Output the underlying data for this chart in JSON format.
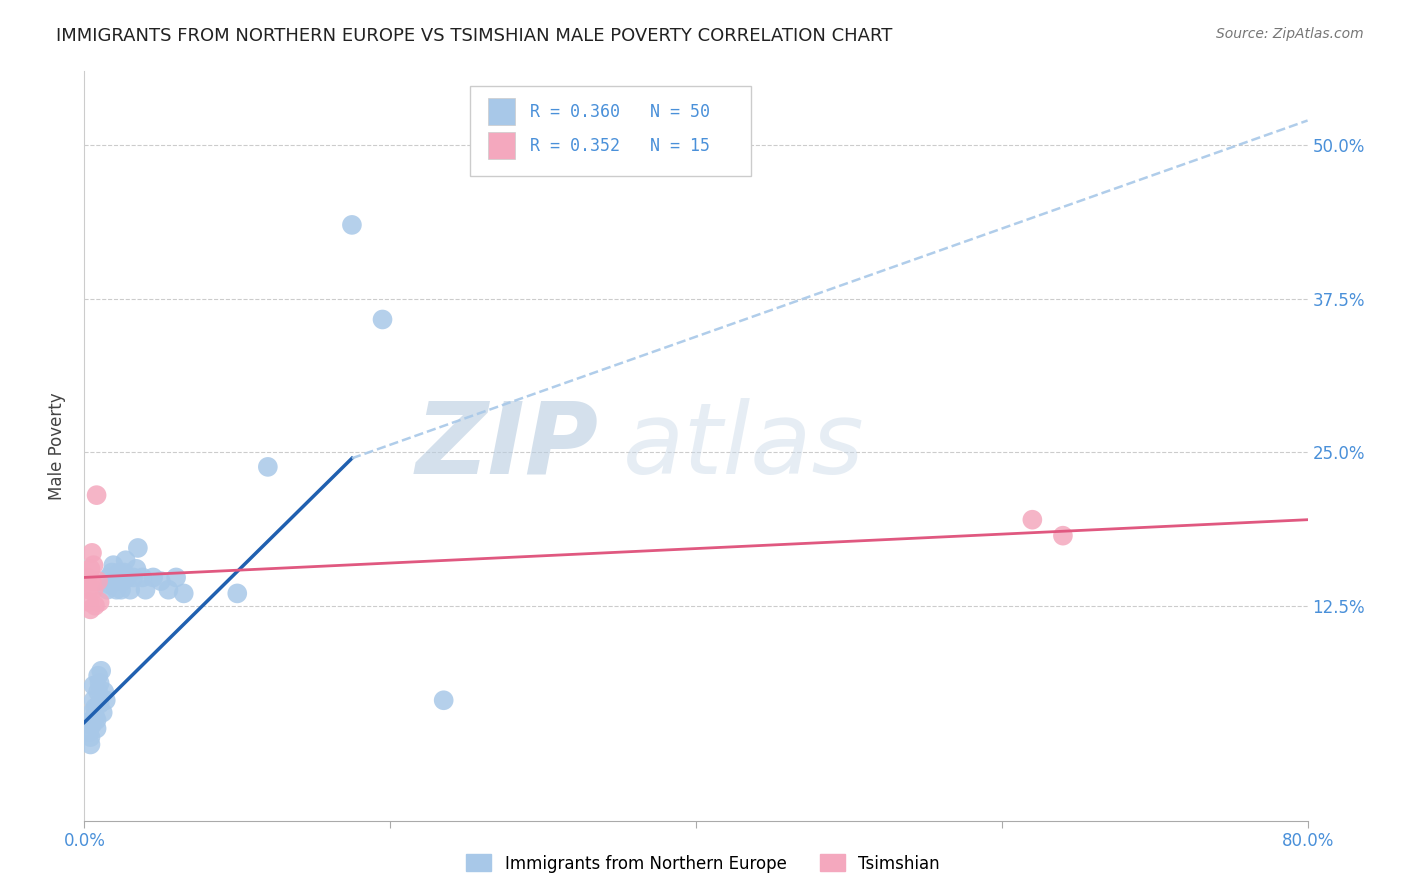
{
  "title": "IMMIGRANTS FROM NORTHERN EUROPE VS TSIMSHIAN MALE POVERTY CORRELATION CHART",
  "source": "Source: ZipAtlas.com",
  "ylabel": "Male Poverty",
  "ytick_labels": [
    "12.5%",
    "25.0%",
    "37.5%",
    "50.0%"
  ],
  "ytick_values": [
    0.125,
    0.25,
    0.375,
    0.5
  ],
  "xlim": [
    0.0,
    0.8
  ],
  "ylim": [
    -0.05,
    0.56
  ],
  "legend1_label": "Immigrants from Northern Europe",
  "legend2_label": "Tsimshian",
  "r1": 0.36,
  "n1": 50,
  "r2": 0.352,
  "n2": 15,
  "blue_color": "#a8c8e8",
  "pink_color": "#f4a8be",
  "blue_line_color": "#2060b0",
  "pink_line_color": "#e05880",
  "blue_dots": [
    [
      0.002,
      0.03
    ],
    [
      0.003,
      0.022
    ],
    [
      0.004,
      0.018
    ],
    [
      0.004,
      0.012
    ],
    [
      0.005,
      0.038
    ],
    [
      0.005,
      0.028
    ],
    [
      0.006,
      0.048
    ],
    [
      0.006,
      0.06
    ],
    [
      0.007,
      0.035
    ],
    [
      0.007,
      0.042
    ],
    [
      0.008,
      0.025
    ],
    [
      0.008,
      0.032
    ],
    [
      0.009,
      0.068
    ],
    [
      0.009,
      0.055
    ],
    [
      0.01,
      0.045
    ],
    [
      0.01,
      0.062
    ],
    [
      0.011,
      0.072
    ],
    [
      0.012,
      0.038
    ],
    [
      0.013,
      0.055
    ],
    [
      0.014,
      0.048
    ],
    [
      0.015,
      0.138
    ],
    [
      0.016,
      0.148
    ],
    [
      0.017,
      0.142
    ],
    [
      0.018,
      0.152
    ],
    [
      0.019,
      0.158
    ],
    [
      0.02,
      0.145
    ],
    [
      0.021,
      0.138
    ],
    [
      0.022,
      0.148
    ],
    [
      0.023,
      0.152
    ],
    [
      0.024,
      0.138
    ],
    [
      0.025,
      0.145
    ],
    [
      0.026,
      0.152
    ],
    [
      0.027,
      0.162
    ],
    [
      0.028,
      0.148
    ],
    [
      0.03,
      0.138
    ],
    [
      0.032,
      0.148
    ],
    [
      0.034,
      0.155
    ],
    [
      0.035,
      0.172
    ],
    [
      0.038,
      0.148
    ],
    [
      0.04,
      0.138
    ],
    [
      0.045,
      0.148
    ],
    [
      0.05,
      0.145
    ],
    [
      0.055,
      0.138
    ],
    [
      0.06,
      0.148
    ],
    [
      0.065,
      0.135
    ],
    [
      0.1,
      0.135
    ],
    [
      0.12,
      0.238
    ],
    [
      0.175,
      0.435
    ],
    [
      0.195,
      0.358
    ],
    [
      0.235,
      0.048
    ]
  ],
  "pink_dots": [
    [
      0.002,
      0.148
    ],
    [
      0.003,
      0.138
    ],
    [
      0.003,
      0.128
    ],
    [
      0.004,
      0.155
    ],
    [
      0.004,
      0.122
    ],
    [
      0.005,
      0.145
    ],
    [
      0.005,
      0.168
    ],
    [
      0.006,
      0.158
    ],
    [
      0.006,
      0.138
    ],
    [
      0.007,
      0.125
    ],
    [
      0.008,
      0.215
    ],
    [
      0.009,
      0.145
    ],
    [
      0.01,
      0.128
    ],
    [
      0.62,
      0.195
    ],
    [
      0.64,
      0.182
    ]
  ],
  "blue_trendline_solid": [
    [
      0.0,
      0.03
    ],
    [
      0.175,
      0.245
    ]
  ],
  "blue_trendline_dashed": [
    [
      0.175,
      0.245
    ],
    [
      0.8,
      0.52
    ]
  ],
  "pink_trendline": [
    [
      0.0,
      0.148
    ],
    [
      0.8,
      0.195
    ]
  ],
  "watermark_zip": "ZIP",
  "watermark_atlas": "atlas",
  "watermark_color": "#c8d8ec"
}
